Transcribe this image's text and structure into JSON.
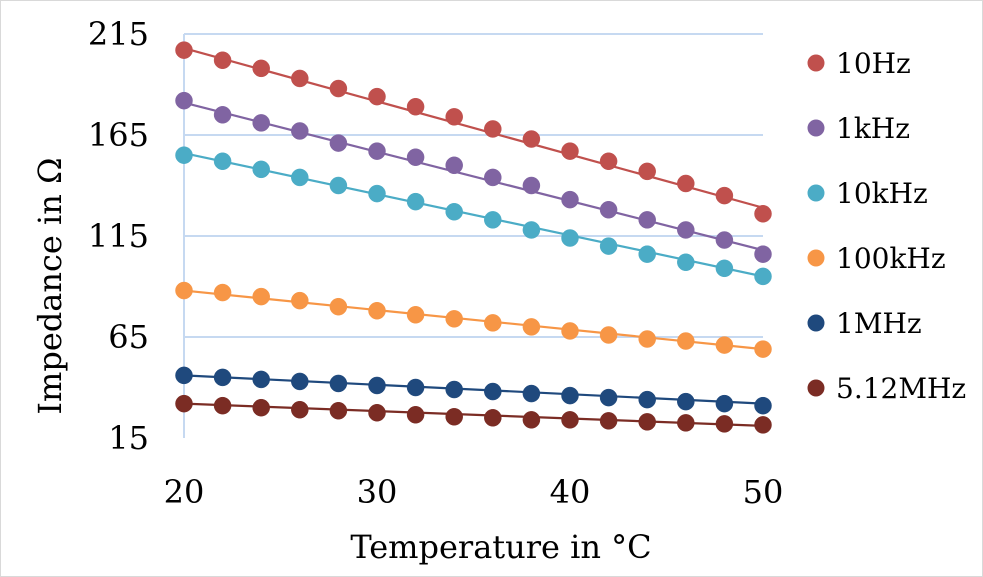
{
  "chart_data": {
    "type": "scatter",
    "title": "",
    "xlabel": "Temperature in °C",
    "ylabel": "Impedance in Ω",
    "xlim": [
      20,
      50
    ],
    "ylim": [
      15,
      215
    ],
    "xticks": [
      20,
      30,
      40,
      50
    ],
    "yticks": [
      15,
      65,
      115,
      165,
      215
    ],
    "grid": "horizontal",
    "legend_position": "right",
    "x": [
      20,
      22,
      24,
      26,
      28,
      30,
      32,
      34,
      36,
      38,
      40,
      42,
      44,
      46,
      48,
      50
    ],
    "series": [
      {
        "name": "10Hz",
        "color": "#c0504d",
        "values": [
          207,
          202,
          198,
          193,
          188,
          184,
          179,
          174,
          168,
          163,
          157,
          152,
          147,
          141,
          135,
          126
        ],
        "trend": [
          208,
          129
        ]
      },
      {
        "name": "1kHz",
        "color": "#8064a2",
        "values": [
          182,
          175,
          171,
          167,
          161,
          157,
          154,
          150,
          144,
          140,
          133,
          128,
          123,
          118,
          113,
          106
        ],
        "trend": [
          181,
          108
        ]
      },
      {
        "name": "10kHz",
        "color": "#4bacc6",
        "values": [
          155,
          152,
          148,
          144,
          140,
          136,
          132,
          127,
          123,
          118,
          114,
          110,
          106,
          102,
          99,
          95
        ],
        "trend": [
          156,
          95
        ]
      },
      {
        "name": "100kHz",
        "color": "#f79646",
        "values": [
          88,
          87,
          85,
          83,
          80,
          78,
          76,
          74,
          72,
          70,
          68,
          66,
          64,
          63,
          61,
          59
        ],
        "trend": [
          88,
          59
        ]
      },
      {
        "name": "1MHz",
        "color": "#1f497d",
        "values": [
          46,
          45,
          44,
          43,
          42,
          41,
          40,
          39,
          38,
          37,
          36,
          35,
          34,
          33,
          32,
          31
        ],
        "trend": [
          46,
          32
        ]
      },
      {
        "name": "5.12MHz",
        "color": "#7b2c24",
        "values": [
          32,
          31,
          30,
          29,
          28.5,
          27.5,
          26.5,
          25.5,
          25,
          24,
          24,
          23.5,
          23,
          22.5,
          22,
          21.5
        ],
        "trend": [
          32,
          21
        ]
      }
    ]
  }
}
